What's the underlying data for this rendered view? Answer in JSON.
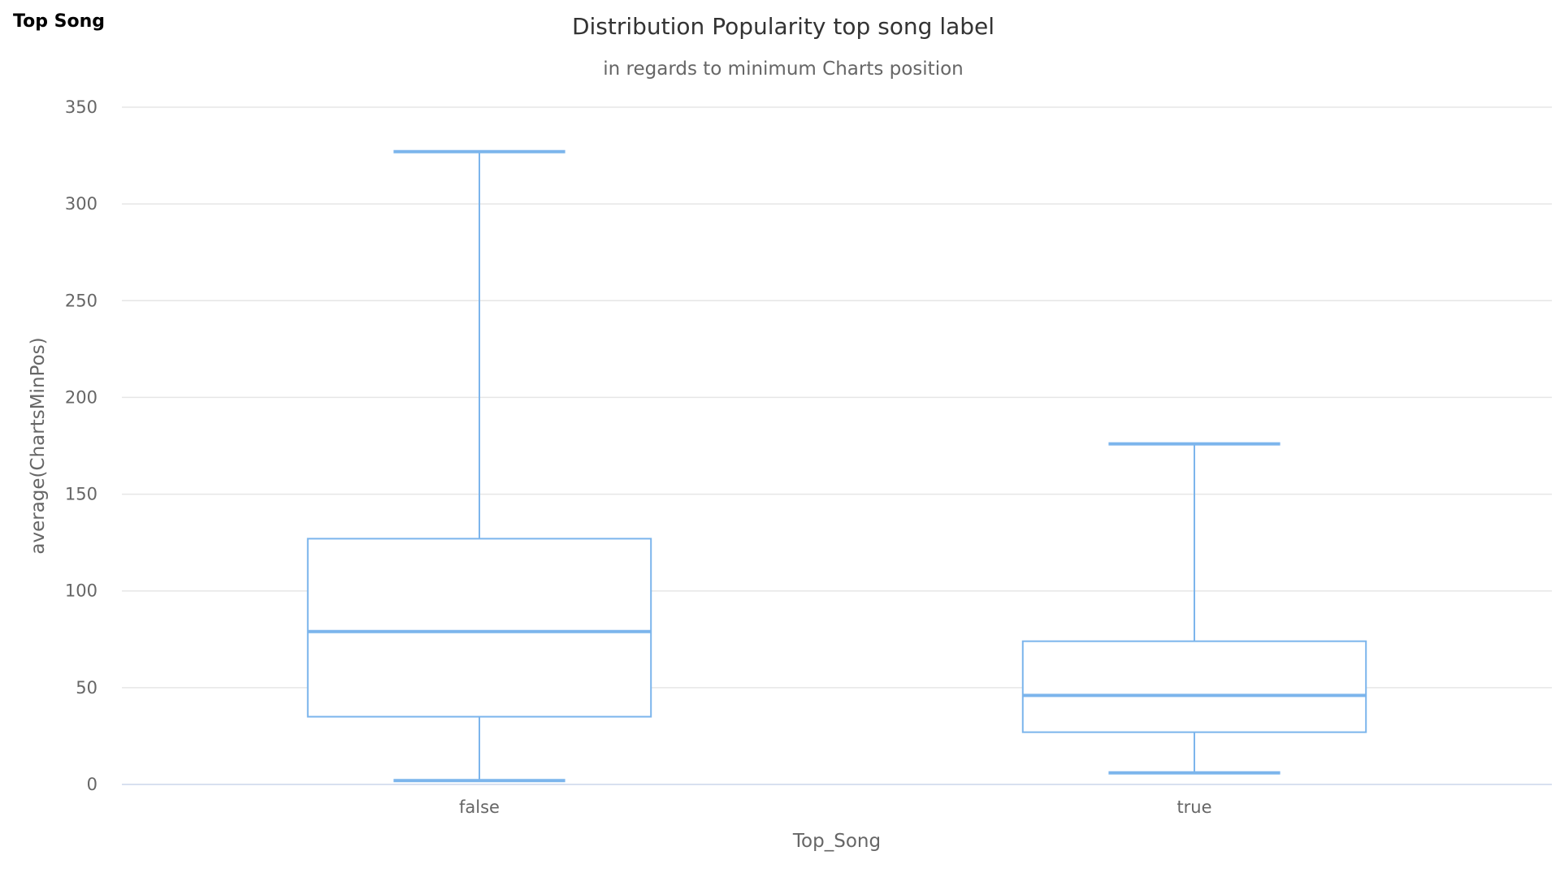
{
  "panel": {
    "title": "Top Song"
  },
  "colors": {
    "box_stroke": "#7cb5ec",
    "box_fill": "#ffffff"
  },
  "chart_data": {
    "type": "boxplot",
    "title": "Distribution Popularity top song label",
    "subtitle": "in regards to minimum Charts position",
    "xlabel": "Top_Song",
    "ylabel": "average(ChartsMinPos)",
    "categories": [
      "false",
      "true"
    ],
    "yticks": [
      0,
      50,
      100,
      150,
      200,
      250,
      300,
      350
    ],
    "ylim": [
      0,
      350
    ],
    "grid": true,
    "series": [
      {
        "boxes": [
          {
            "category": "false",
            "low": 2,
            "q1": 35,
            "median": 79,
            "q3": 127,
            "high": 327
          },
          {
            "category": "true",
            "low": 6,
            "q1": 27,
            "median": 46,
            "q3": 74,
            "high": 176
          }
        ]
      }
    ]
  }
}
